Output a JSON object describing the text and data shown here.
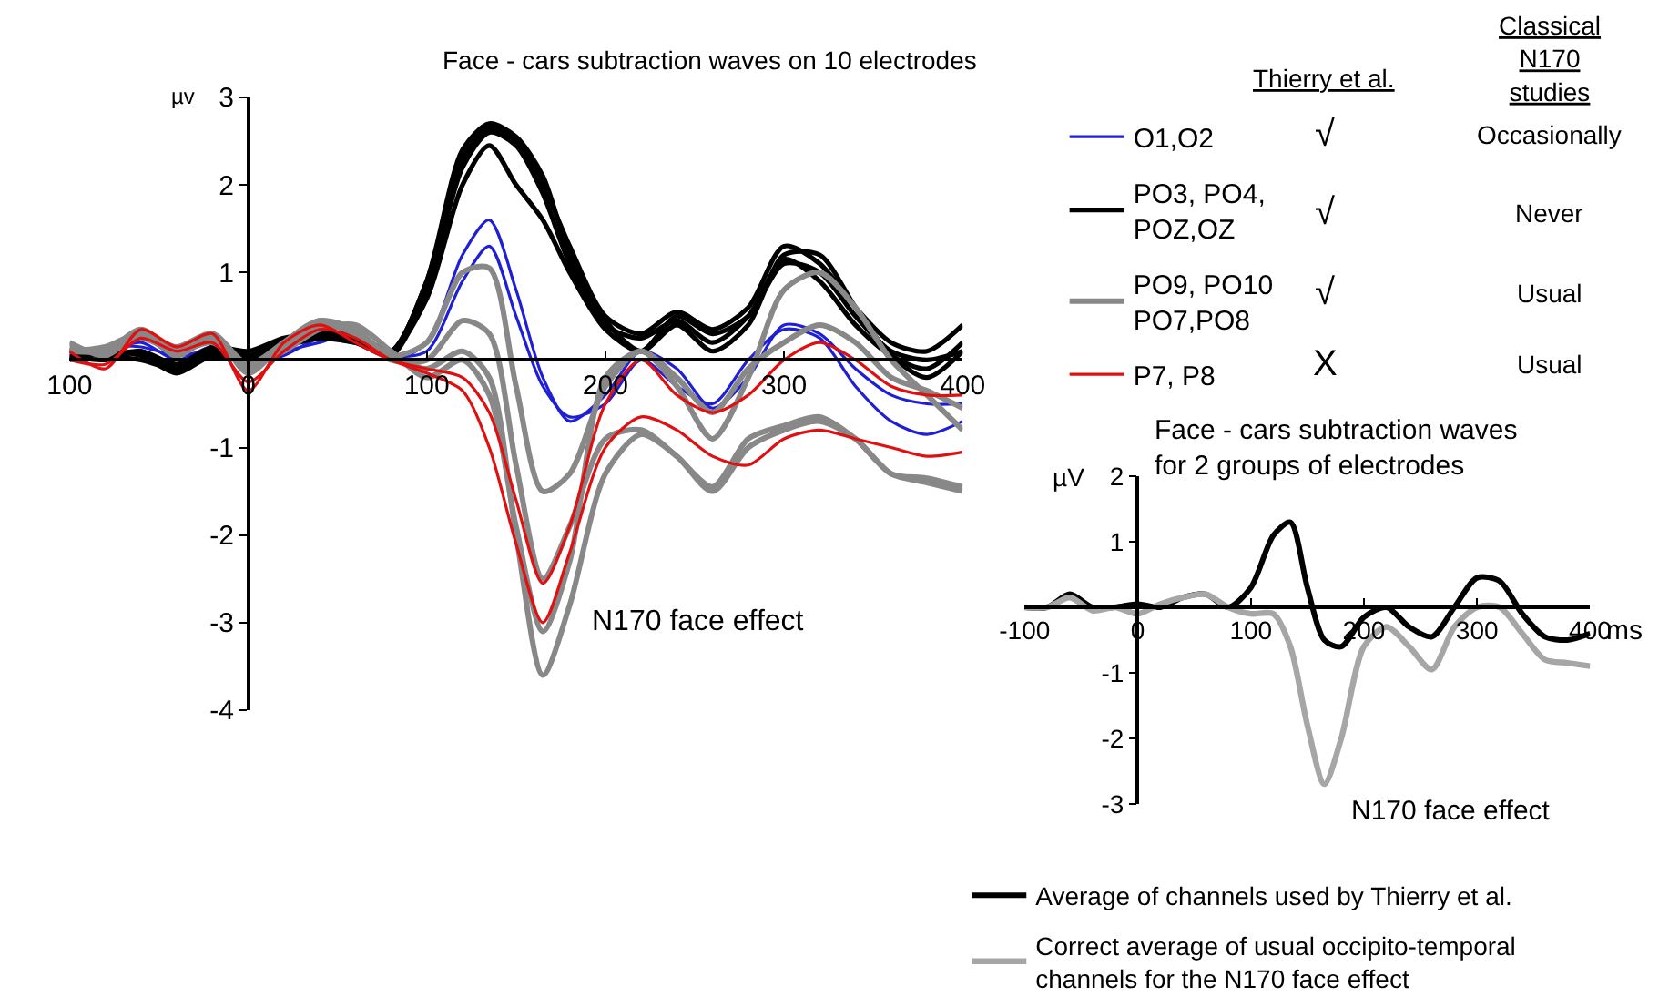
{
  "chart_data": [
    {
      "type": "line",
      "title": "Face - cars subtraction waves on 10 electrodes",
      "ylabel": "µv",
      "x": [
        -100,
        -80,
        -60,
        -40,
        -20,
        0,
        20,
        40,
        60,
        80,
        100,
        120,
        135,
        150,
        165,
        180,
        200,
        220,
        240,
        260,
        280,
        300,
        320,
        340,
        360,
        380,
        400
      ],
      "xlim": [
        -100,
        400
      ],
      "xticks": [
        {
          "value": -100,
          "label": "100"
        },
        0,
        100,
        200,
        300,
        400
      ],
      "ylim": [
        -4,
        3
      ],
      "yticks": [
        -4,
        -3,
        -2,
        -1,
        1,
        2,
        3
      ],
      "grid": false,
      "legend": "top right",
      "marker": "none",
      "line_style": "solid",
      "series": [
        {
          "name": "O1,O2",
          "color": "#1f1fd6",
          "values": [
            0.05,
            0.1,
            0.2,
            0.0,
            0.15,
            0.0,
            0.1,
            0.2,
            0.3,
            0.0,
            0.2,
            1.2,
            1.6,
            0.8,
            -0.2,
            -0.7,
            -0.4,
            0.1,
            -0.1,
            -0.55,
            -0.2,
            0.4,
            0.3,
            -0.1,
            -0.4,
            -0.5,
            -0.5
          ]
        },
        {
          "color": "#1f1fd6",
          "values": [
            0.0,
            0.15,
            0.15,
            0.05,
            0.1,
            -0.05,
            0.05,
            0.25,
            0.25,
            0.05,
            0.1,
            0.9,
            1.3,
            0.5,
            -0.3,
            -0.65,
            -0.5,
            0.0,
            -0.3,
            -0.5,
            0.0,
            0.35,
            0.25,
            -0.3,
            -0.7,
            -0.85,
            -0.7
          ]
        },
        {
          "name": "PO3, PO4, POZ,OZ",
          "color": "#000000",
          "values": [
            0.1,
            0.05,
            0.1,
            -0.1,
            0.1,
            0.05,
            0.2,
            0.3,
            0.25,
            0.1,
            0.9,
            2.3,
            2.65,
            2.5,
            2.0,
            1.3,
            0.5,
            0.3,
            0.55,
            0.35,
            0.6,
            1.3,
            1.1,
            0.6,
            0.2,
            0.1,
            0.4
          ]
        },
        {
          "color": "#000000",
          "values": [
            0.0,
            0.1,
            0.05,
            -0.15,
            0.05,
            0.0,
            0.15,
            0.25,
            0.2,
            0.05,
            0.8,
            2.2,
            2.6,
            2.45,
            1.9,
            1.1,
            0.4,
            0.25,
            0.45,
            0.2,
            0.5,
            1.15,
            0.9,
            0.4,
            0.05,
            -0.1,
            0.2
          ]
        },
        {
          "color": "#000000",
          "values": [
            0.05,
            0.0,
            0.1,
            -0.05,
            0.15,
            0.1,
            0.25,
            0.3,
            0.3,
            0.1,
            0.7,
            2.0,
            2.45,
            2.0,
            1.6,
            1.0,
            0.35,
            0.1,
            0.5,
            0.3,
            0.5,
            1.1,
            1.0,
            0.5,
            0.1,
            0.0,
            0.1
          ]
        },
        {
          "color": "#000000",
          "values": [
            0.1,
            0.05,
            0.0,
            -0.1,
            0.1,
            0.0,
            0.2,
            0.25,
            0.2,
            0.1,
            0.9,
            2.4,
            2.7,
            2.55,
            2.1,
            1.2,
            0.45,
            0.1,
            0.4,
            0.1,
            0.4,
            1.2,
            1.2,
            0.6,
            0.05,
            -0.2,
            0.1
          ]
        },
        {
          "name": "PO9, PO10 PO7,PO8",
          "color": "#888888",
          "values": [
            0.15,
            0.1,
            0.35,
            0.1,
            0.3,
            -0.05,
            0.2,
            0.45,
            0.35,
            0.05,
            0.2,
            1.0,
            1.05,
            -0.3,
            -1.5,
            -1.3,
            -0.3,
            0.1,
            -0.3,
            -0.9,
            -0.2,
            0.8,
            1.0,
            0.6,
            0.0,
            -0.4,
            -0.8
          ]
        },
        {
          "color": "#888888",
          "values": [
            0.1,
            0.15,
            0.3,
            0.05,
            0.25,
            -0.1,
            0.15,
            0.4,
            0.3,
            0.0,
            0.0,
            0.45,
            0.3,
            -1.2,
            -2.5,
            -1.9,
            -0.9,
            -0.8,
            -1.1,
            -1.45,
            -0.9,
            -0.75,
            -0.65,
            -0.9,
            -1.3,
            -1.35,
            -1.45
          ]
        },
        {
          "color": "#888888",
          "values": [
            0.2,
            0.05,
            0.3,
            0.15,
            0.3,
            -0.15,
            0.2,
            0.45,
            0.3,
            0.05,
            -0.1,
            0.1,
            -0.2,
            -2.0,
            -3.6,
            -2.8,
            -1.3,
            -0.85,
            -1.1,
            -1.5,
            -1.0,
            -0.8,
            -0.7,
            -0.9,
            -1.3,
            -1.4,
            -1.5
          ]
        },
        {
          "color": "#888888",
          "values": [
            0.1,
            0.1,
            0.25,
            0.1,
            0.2,
            -0.05,
            0.1,
            0.35,
            0.4,
            0.1,
            -0.2,
            0.0,
            -0.4,
            -1.9,
            -3.1,
            -2.3,
            -0.2,
            0.1,
            -0.2,
            -0.6,
            -0.1,
            0.2,
            0.4,
            0.2,
            -0.2,
            -0.35,
            -0.55
          ]
        },
        {
          "name": "P7, P8",
          "color": "#e01010",
          "values": [
            0.1,
            -0.1,
            0.35,
            0.15,
            0.3,
            -0.35,
            0.2,
            0.4,
            0.2,
            0.0,
            -0.1,
            -0.2,
            -0.6,
            -1.6,
            -2.55,
            -1.9,
            -0.5,
            0.0,
            -0.4,
            -0.6,
            -0.4,
            0.0,
            0.2,
            0.0,
            -0.3,
            -0.4,
            -0.4
          ]
        },
        {
          "color": "#e01010",
          "values": [
            0.0,
            -0.05,
            0.25,
            0.1,
            0.2,
            -0.25,
            0.1,
            0.35,
            0.25,
            0.0,
            -0.15,
            -0.35,
            -1.0,
            -2.1,
            -3.0,
            -2.2,
            -1.0,
            -0.65,
            -0.8,
            -1.1,
            -1.2,
            -0.9,
            -0.8,
            -0.9,
            -1.0,
            -1.1,
            -1.05
          ]
        }
      ],
      "annotations": [
        "N170 face effect",
        "Thierry et al.",
        "Classical N170 studies",
        "√",
        "Occasionally",
        "√",
        "Never",
        "√",
        "Usual",
        "X",
        "Usual"
      ]
    },
    {
      "type": "line",
      "title": "Face - cars subtraction waves for 2 groups of electrodes",
      "ylabel": "µV",
      "xlabel": "ms",
      "x": [
        -100,
        -80,
        -60,
        -40,
        -20,
        0,
        20,
        40,
        60,
        80,
        100,
        120,
        135,
        150,
        165,
        180,
        200,
        220,
        240,
        260,
        280,
        300,
        320,
        340,
        360,
        380,
        400
      ],
      "xlim": [
        -100,
        400
      ],
      "xticks": [
        -100,
        0,
        100,
        200,
        300,
        400
      ],
      "ylim": [
        -3,
        2
      ],
      "yticks": [
        -3,
        -2,
        -1,
        1,
        2
      ],
      "grid": false,
      "legend": "bottom",
      "marker": "none",
      "line_style": "solid",
      "series": [
        {
          "name": "Average of channels used by Thierry et al.",
          "color": "#000000",
          "values": [
            0.0,
            0.0,
            0.2,
            0.0,
            0.0,
            0.05,
            0.0,
            0.15,
            0.2,
            0.0,
            0.3,
            1.1,
            1.3,
            0.3,
            -0.5,
            -0.6,
            -0.15,
            0.0,
            -0.3,
            -0.45,
            0.0,
            0.45,
            0.4,
            -0.1,
            -0.45,
            -0.5,
            -0.4
          ]
        },
        {
          "name": "Correct average of usual occipito-temporal channels for the N170 face effect",
          "color": "#a6a6a6",
          "values": [
            0.0,
            0.0,
            0.15,
            -0.05,
            0.0,
            -0.1,
            0.05,
            0.15,
            0.2,
            0.0,
            -0.1,
            -0.1,
            -0.6,
            -1.8,
            -2.7,
            -2.0,
            -0.6,
            -0.3,
            -0.6,
            -0.95,
            -0.3,
            0.0,
            0.0,
            -0.4,
            -0.8,
            -0.85,
            -0.9
          ]
        }
      ],
      "annotations": [
        "N170 face effect"
      ]
    }
  ]
}
